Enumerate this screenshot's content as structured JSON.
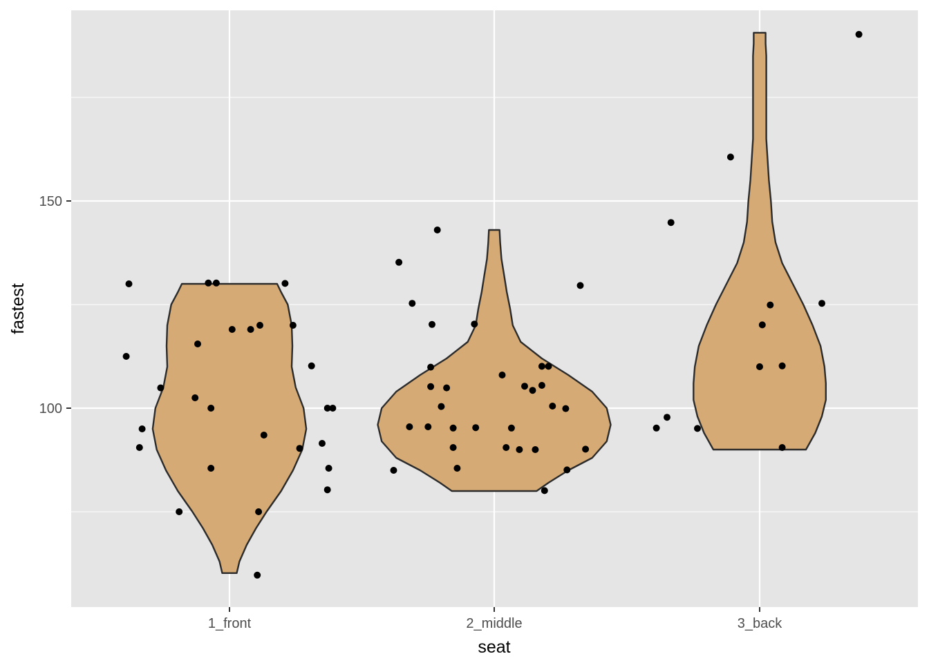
{
  "chart_data": {
    "type": "violin",
    "xlabel": "seat",
    "ylabel": "fastest",
    "categories": [
      "1_front",
      "2_middle",
      "3_back"
    ],
    "ylim": [
      52,
      196
    ],
    "y_ticks": [
      100,
      150
    ],
    "y_minor_ticks": [
      75,
      125,
      175
    ],
    "grid": true,
    "colors": {
      "panel": "#e5e5e5",
      "grid": "#ffffff",
      "violin_fill": "#d5aa74",
      "violin_stroke": "#2b2b2b",
      "point": "#000000"
    },
    "violins": [
      {
        "category": "1_front",
        "profile": [
          [
            60.2,
            0.055
          ],
          [
            63,
            0.075
          ],
          [
            67,
            0.13
          ],
          [
            71,
            0.2
          ],
          [
            75,
            0.28
          ],
          [
            80,
            0.39
          ],
          [
            85,
            0.48
          ],
          [
            90,
            0.55
          ],
          [
            95,
            0.58
          ],
          [
            100,
            0.56
          ],
          [
            105,
            0.5
          ],
          [
            110,
            0.47
          ],
          [
            115,
            0.475
          ],
          [
            120,
            0.47
          ],
          [
            125,
            0.44
          ],
          [
            128,
            0.39
          ],
          [
            130,
            0.36
          ]
        ]
      },
      {
        "category": "2_middle",
        "profile": [
          [
            80,
            0.32
          ],
          [
            82,
            0.41
          ],
          [
            85,
            0.56
          ],
          [
            88,
            0.74
          ],
          [
            92,
            0.85
          ],
          [
            96,
            0.88
          ],
          [
            100,
            0.85
          ],
          [
            104,
            0.74
          ],
          [
            108,
            0.56
          ],
          [
            112,
            0.36
          ],
          [
            116,
            0.2
          ],
          [
            120,
            0.14
          ],
          [
            124,
            0.12
          ],
          [
            128,
            0.095
          ],
          [
            132,
            0.075
          ],
          [
            136,
            0.055
          ],
          [
            140,
            0.045
          ],
          [
            143,
            0.04
          ]
        ]
      },
      {
        "category": "3_back",
        "profile": [
          [
            90,
            0.35
          ],
          [
            94,
            0.42
          ],
          [
            98,
            0.47
          ],
          [
            102,
            0.5
          ],
          [
            106,
            0.5
          ],
          [
            110,
            0.49
          ],
          [
            115,
            0.46
          ],
          [
            120,
            0.4
          ],
          [
            125,
            0.33
          ],
          [
            130,
            0.25
          ],
          [
            135,
            0.17
          ],
          [
            140,
            0.12
          ],
          [
            145,
            0.095
          ],
          [
            150,
            0.085
          ],
          [
            155,
            0.07
          ],
          [
            160,
            0.06
          ],
          [
            165,
            0.05
          ],
          [
            170,
            0.05
          ],
          [
            175,
            0.05
          ],
          [
            180,
            0.05
          ],
          [
            185,
            0.05
          ],
          [
            188,
            0.045
          ],
          [
            190.6,
            0.045
          ]
        ]
      }
    ],
    "points": [
      {
        "category": "1_front",
        "offset": -0.38,
        "y": 130
      },
      {
        "category": "1_front",
        "offset": -0.39,
        "y": 112.5
      },
      {
        "category": "1_front",
        "offset": -0.26,
        "y": 104.9
      },
      {
        "category": "1_front",
        "offset": -0.33,
        "y": 95
      },
      {
        "category": "1_front",
        "offset": -0.34,
        "y": 90.5
      },
      {
        "category": "1_front",
        "offset": -0.19,
        "y": 75
      },
      {
        "category": "1_front",
        "offset": -0.12,
        "y": 115.5
      },
      {
        "category": "1_front",
        "offset": -0.13,
        "y": 102.5
      },
      {
        "category": "1_front",
        "offset": -0.08,
        "y": 130.2
      },
      {
        "category": "1_front",
        "offset": -0.05,
        "y": 130.2
      },
      {
        "category": "1_front",
        "offset": -0.07,
        "y": 100
      },
      {
        "category": "1_front",
        "offset": -0.07,
        "y": 85.5
      },
      {
        "category": "1_front",
        "offset": 0.01,
        "y": 119
      },
      {
        "category": "1_front",
        "offset": 0.08,
        "y": 119
      },
      {
        "category": "1_front",
        "offset": 0.115,
        "y": 120
      },
      {
        "category": "1_front",
        "offset": 0.13,
        "y": 93.5
      },
      {
        "category": "1_front",
        "offset": 0.11,
        "y": 75
      },
      {
        "category": "1_front",
        "offset": 0.105,
        "y": 59.7
      },
      {
        "category": "1_front",
        "offset": 0.21,
        "y": 130.1
      },
      {
        "category": "1_front",
        "offset": 0.24,
        "y": 120
      },
      {
        "category": "1_front",
        "offset": 0.265,
        "y": 90.3
      },
      {
        "category": "1_front",
        "offset": 0.31,
        "y": 110.2
      },
      {
        "category": "1_front",
        "offset": 0.35,
        "y": 91.5
      },
      {
        "category": "1_front",
        "offset": 0.37,
        "y": 100
      },
      {
        "category": "1_front",
        "offset": 0.39,
        "y": 100
      },
      {
        "category": "1_front",
        "offset": 0.375,
        "y": 85.5
      },
      {
        "category": "1_front",
        "offset": 0.37,
        "y": 80.3
      },
      {
        "category": "2_middle",
        "offset": -0.38,
        "y": 85
      },
      {
        "category": "2_middle",
        "offset": -0.36,
        "y": 135.2
      },
      {
        "category": "2_middle",
        "offset": -0.31,
        "y": 125.3
      },
      {
        "category": "2_middle",
        "offset": -0.32,
        "y": 95.5
      },
      {
        "category": "2_middle",
        "offset": -0.25,
        "y": 95.5
      },
      {
        "category": "2_middle",
        "offset": -0.24,
        "y": 109.9
      },
      {
        "category": "2_middle",
        "offset": -0.24,
        "y": 105.2
      },
      {
        "category": "2_middle",
        "offset": -0.235,
        "y": 120.2
      },
      {
        "category": "2_middle",
        "offset": -0.215,
        "y": 143
      },
      {
        "category": "2_middle",
        "offset": -0.2,
        "y": 100.4
      },
      {
        "category": "2_middle",
        "offset": -0.18,
        "y": 104.9
      },
      {
        "category": "2_middle",
        "offset": -0.155,
        "y": 95.2
      },
      {
        "category": "2_middle",
        "offset": -0.155,
        "y": 90.5
      },
      {
        "category": "2_middle",
        "offset": -0.14,
        "y": 85.5
      },
      {
        "category": "2_middle",
        "offset": -0.075,
        "y": 120.3
      },
      {
        "category": "2_middle",
        "offset": -0.07,
        "y": 95.3
      },
      {
        "category": "2_middle",
        "offset": 0.03,
        "y": 108
      },
      {
        "category": "2_middle",
        "offset": 0.045,
        "y": 90.5
      },
      {
        "category": "2_middle",
        "offset": 0.065,
        "y": 95.2
      },
      {
        "category": "2_middle",
        "offset": 0.095,
        "y": 90
      },
      {
        "category": "2_middle",
        "offset": 0.115,
        "y": 105.3
      },
      {
        "category": "2_middle",
        "offset": 0.145,
        "y": 104.3
      },
      {
        "category": "2_middle",
        "offset": 0.155,
        "y": 90
      },
      {
        "category": "2_middle",
        "offset": 0.18,
        "y": 105.5
      },
      {
        "category": "2_middle",
        "offset": 0.18,
        "y": 110.1
      },
      {
        "category": "2_middle",
        "offset": 0.205,
        "y": 110.1
      },
      {
        "category": "2_middle",
        "offset": 0.19,
        "y": 80.1
      },
      {
        "category": "2_middle",
        "offset": 0.22,
        "y": 100.5
      },
      {
        "category": "2_middle",
        "offset": 0.27,
        "y": 99.9
      },
      {
        "category": "2_middle",
        "offset": 0.275,
        "y": 85.1
      },
      {
        "category": "2_middle",
        "offset": 0.325,
        "y": 129.6
      },
      {
        "category": "2_middle",
        "offset": 0.345,
        "y": 90.1
      },
      {
        "category": "3_back",
        "offset": -0.39,
        "y": 95.2
      },
      {
        "category": "3_back",
        "offset": -0.35,
        "y": 97.8
      },
      {
        "category": "3_back",
        "offset": -0.335,
        "y": 144.8
      },
      {
        "category": "3_back",
        "offset": -0.235,
        "y": 95.1
      },
      {
        "category": "3_back",
        "offset": -0.11,
        "y": 160.6
      },
      {
        "category": "3_back",
        "offset": 0.0,
        "y": 110
      },
      {
        "category": "3_back",
        "offset": 0.01,
        "y": 120.1
      },
      {
        "category": "3_back",
        "offset": 0.04,
        "y": 124.9
      },
      {
        "category": "3_back",
        "offset": 0.085,
        "y": 110.2
      },
      {
        "category": "3_back",
        "offset": 0.085,
        "y": 90.5
      },
      {
        "category": "3_back",
        "offset": 0.235,
        "y": 125.3
      },
      {
        "category": "3_back",
        "offset": 0.375,
        "y": 190.2
      }
    ]
  }
}
